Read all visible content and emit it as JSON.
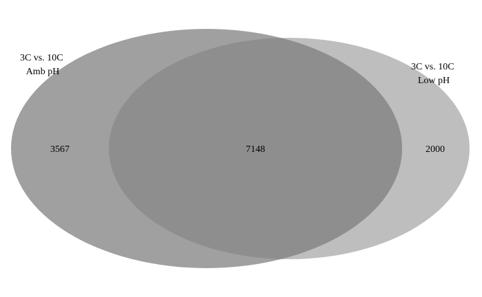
{
  "venn": {
    "sets": [
      {
        "label_lines": [
          "3C vs. 10C",
          "Amb pH"
        ],
        "fill": "#a0a0a0"
      },
      {
        "label_lines": [
          "3C vs. 10C",
          "Low pH"
        ],
        "fill": "#bebebe"
      }
    ],
    "overlap_fill": "#8e8e8e",
    "counts": {
      "left_only": "3567",
      "intersection": "7148",
      "right_only": "2000"
    }
  }
}
